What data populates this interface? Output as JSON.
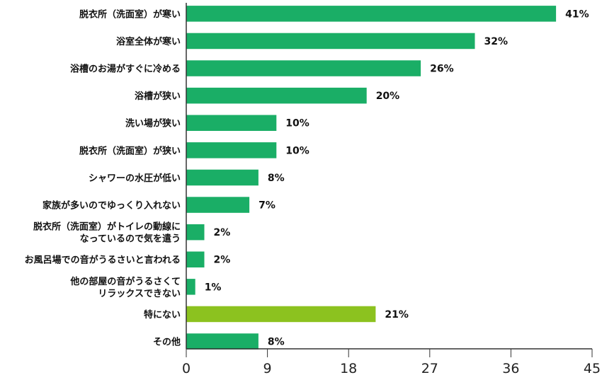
{
  "chart_data": {
    "type": "bar",
    "orientation": "horizontal",
    "categories": [
      [
        "脱衣所（洗面室）が寒い"
      ],
      [
        "浴室全体が寒い"
      ],
      [
        "浴槽のお湯がすぐに冷める"
      ],
      [
        "浴槽が狭い"
      ],
      [
        "洗い場が狭い"
      ],
      [
        "脱衣所（洗面室）が狭い"
      ],
      [
        "シャワーの水圧が低い"
      ],
      [
        "家族が多いのでゆっくり入れない"
      ],
      [
        "脱衣所（洗面室）がトイレの動線に",
        "なっているので気を遣う"
      ],
      [
        "お風呂場での音がうるさいと言われる"
      ],
      [
        "他の部屋の音がうるさくて",
        "リラックスできない"
      ],
      [
        "特にない"
      ],
      [
        "その他"
      ]
    ],
    "values": [
      41,
      32,
      26,
      20,
      10,
      10,
      8,
      7,
      2,
      2,
      1,
      21,
      8
    ],
    "value_labels": [
      "41%",
      "32%",
      "26%",
      "20%",
      "10%",
      "10%",
      "8%",
      "7%",
      "2%",
      "2%",
      "1%",
      "21%",
      "8%"
    ],
    "bar_colors": [
      "#1aae66",
      "#1aae66",
      "#1aae66",
      "#1aae66",
      "#1aae66",
      "#1aae66",
      "#1aae66",
      "#1aae66",
      "#1aae66",
      "#1aae66",
      "#1aae66",
      "#8cc21f",
      "#1aae66"
    ],
    "xlim": [
      0,
      45
    ],
    "xticks": [
      0,
      9,
      18,
      27,
      36,
      45
    ],
    "title": "",
    "xlabel": "",
    "ylabel": "",
    "grid": false,
    "legend": "none"
  }
}
